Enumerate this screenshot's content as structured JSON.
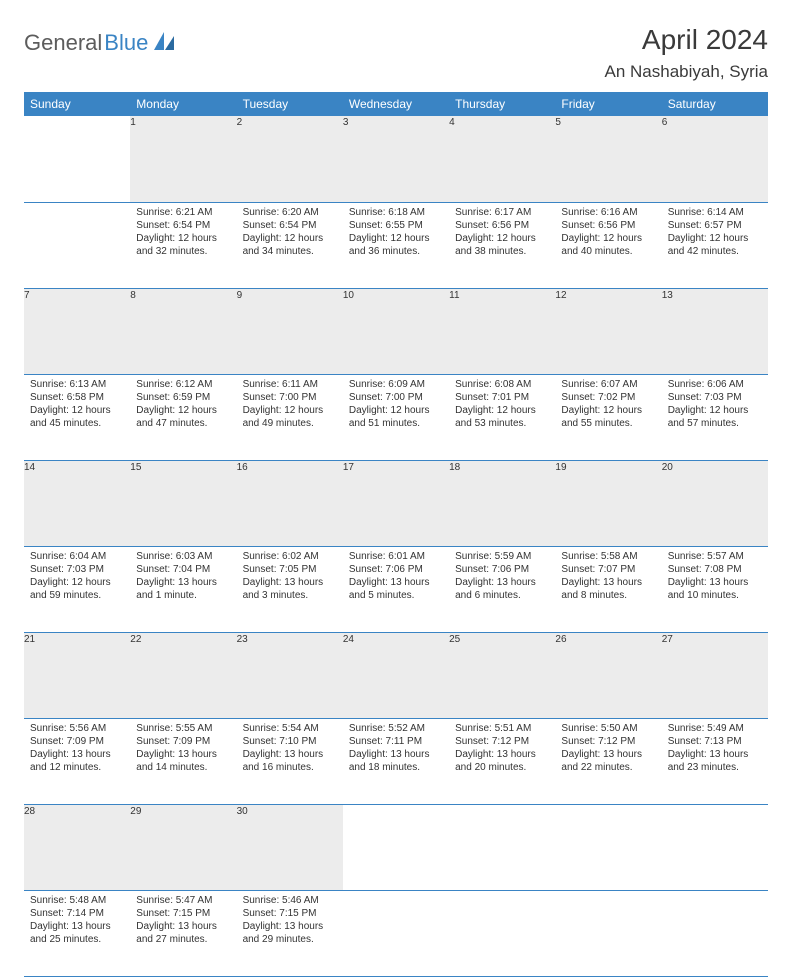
{
  "logo": {
    "part1": "General",
    "part2": "Blue"
  },
  "title": "April 2024",
  "location": "An Nashabiyah, Syria",
  "colors": {
    "header_bg": "#3a84c4",
    "daynum_bg": "#ececec",
    "rule": "#3a84c4",
    "text": "#333333"
  },
  "day_headers": [
    "Sunday",
    "Monday",
    "Tuesday",
    "Wednesday",
    "Thursday",
    "Friday",
    "Saturday"
  ],
  "weeks": [
    [
      null,
      {
        "n": "1",
        "sr": "Sunrise: 6:21 AM",
        "ss": "Sunset: 6:54 PM",
        "d1": "Daylight: 12 hours",
        "d2": "and 32 minutes."
      },
      {
        "n": "2",
        "sr": "Sunrise: 6:20 AM",
        "ss": "Sunset: 6:54 PM",
        "d1": "Daylight: 12 hours",
        "d2": "and 34 minutes."
      },
      {
        "n": "3",
        "sr": "Sunrise: 6:18 AM",
        "ss": "Sunset: 6:55 PM",
        "d1": "Daylight: 12 hours",
        "d2": "and 36 minutes."
      },
      {
        "n": "4",
        "sr": "Sunrise: 6:17 AM",
        "ss": "Sunset: 6:56 PM",
        "d1": "Daylight: 12 hours",
        "d2": "and 38 minutes."
      },
      {
        "n": "5",
        "sr": "Sunrise: 6:16 AM",
        "ss": "Sunset: 6:56 PM",
        "d1": "Daylight: 12 hours",
        "d2": "and 40 minutes."
      },
      {
        "n": "6",
        "sr": "Sunrise: 6:14 AM",
        "ss": "Sunset: 6:57 PM",
        "d1": "Daylight: 12 hours",
        "d2": "and 42 minutes."
      }
    ],
    [
      {
        "n": "7",
        "sr": "Sunrise: 6:13 AM",
        "ss": "Sunset: 6:58 PM",
        "d1": "Daylight: 12 hours",
        "d2": "and 45 minutes."
      },
      {
        "n": "8",
        "sr": "Sunrise: 6:12 AM",
        "ss": "Sunset: 6:59 PM",
        "d1": "Daylight: 12 hours",
        "d2": "and 47 minutes."
      },
      {
        "n": "9",
        "sr": "Sunrise: 6:11 AM",
        "ss": "Sunset: 7:00 PM",
        "d1": "Daylight: 12 hours",
        "d2": "and 49 minutes."
      },
      {
        "n": "10",
        "sr": "Sunrise: 6:09 AM",
        "ss": "Sunset: 7:00 PM",
        "d1": "Daylight: 12 hours",
        "d2": "and 51 minutes."
      },
      {
        "n": "11",
        "sr": "Sunrise: 6:08 AM",
        "ss": "Sunset: 7:01 PM",
        "d1": "Daylight: 12 hours",
        "d2": "and 53 minutes."
      },
      {
        "n": "12",
        "sr": "Sunrise: 6:07 AM",
        "ss": "Sunset: 7:02 PM",
        "d1": "Daylight: 12 hours",
        "d2": "and 55 minutes."
      },
      {
        "n": "13",
        "sr": "Sunrise: 6:06 AM",
        "ss": "Sunset: 7:03 PM",
        "d1": "Daylight: 12 hours",
        "d2": "and 57 minutes."
      }
    ],
    [
      {
        "n": "14",
        "sr": "Sunrise: 6:04 AM",
        "ss": "Sunset: 7:03 PM",
        "d1": "Daylight: 12 hours",
        "d2": "and 59 minutes."
      },
      {
        "n": "15",
        "sr": "Sunrise: 6:03 AM",
        "ss": "Sunset: 7:04 PM",
        "d1": "Daylight: 13 hours",
        "d2": "and 1 minute."
      },
      {
        "n": "16",
        "sr": "Sunrise: 6:02 AM",
        "ss": "Sunset: 7:05 PM",
        "d1": "Daylight: 13 hours",
        "d2": "and 3 minutes."
      },
      {
        "n": "17",
        "sr": "Sunrise: 6:01 AM",
        "ss": "Sunset: 7:06 PM",
        "d1": "Daylight: 13 hours",
        "d2": "and 5 minutes."
      },
      {
        "n": "18",
        "sr": "Sunrise: 5:59 AM",
        "ss": "Sunset: 7:06 PM",
        "d1": "Daylight: 13 hours",
        "d2": "and 6 minutes."
      },
      {
        "n": "19",
        "sr": "Sunrise: 5:58 AM",
        "ss": "Sunset: 7:07 PM",
        "d1": "Daylight: 13 hours",
        "d2": "and 8 minutes."
      },
      {
        "n": "20",
        "sr": "Sunrise: 5:57 AM",
        "ss": "Sunset: 7:08 PM",
        "d1": "Daylight: 13 hours",
        "d2": "and 10 minutes."
      }
    ],
    [
      {
        "n": "21",
        "sr": "Sunrise: 5:56 AM",
        "ss": "Sunset: 7:09 PM",
        "d1": "Daylight: 13 hours",
        "d2": "and 12 minutes."
      },
      {
        "n": "22",
        "sr": "Sunrise: 5:55 AM",
        "ss": "Sunset: 7:09 PM",
        "d1": "Daylight: 13 hours",
        "d2": "and 14 minutes."
      },
      {
        "n": "23",
        "sr": "Sunrise: 5:54 AM",
        "ss": "Sunset: 7:10 PM",
        "d1": "Daylight: 13 hours",
        "d2": "and 16 minutes."
      },
      {
        "n": "24",
        "sr": "Sunrise: 5:52 AM",
        "ss": "Sunset: 7:11 PM",
        "d1": "Daylight: 13 hours",
        "d2": "and 18 minutes."
      },
      {
        "n": "25",
        "sr": "Sunrise: 5:51 AM",
        "ss": "Sunset: 7:12 PM",
        "d1": "Daylight: 13 hours",
        "d2": "and 20 minutes."
      },
      {
        "n": "26",
        "sr": "Sunrise: 5:50 AM",
        "ss": "Sunset: 7:12 PM",
        "d1": "Daylight: 13 hours",
        "d2": "and 22 minutes."
      },
      {
        "n": "27",
        "sr": "Sunrise: 5:49 AM",
        "ss": "Sunset: 7:13 PM",
        "d1": "Daylight: 13 hours",
        "d2": "and 23 minutes."
      }
    ],
    [
      {
        "n": "28",
        "sr": "Sunrise: 5:48 AM",
        "ss": "Sunset: 7:14 PM",
        "d1": "Daylight: 13 hours",
        "d2": "and 25 minutes."
      },
      {
        "n": "29",
        "sr": "Sunrise: 5:47 AM",
        "ss": "Sunset: 7:15 PM",
        "d1": "Daylight: 13 hours",
        "d2": "and 27 minutes."
      },
      {
        "n": "30",
        "sr": "Sunrise: 5:46 AM",
        "ss": "Sunset: 7:15 PM",
        "d1": "Daylight: 13 hours",
        "d2": "and 29 minutes."
      },
      null,
      null,
      null,
      null
    ]
  ]
}
